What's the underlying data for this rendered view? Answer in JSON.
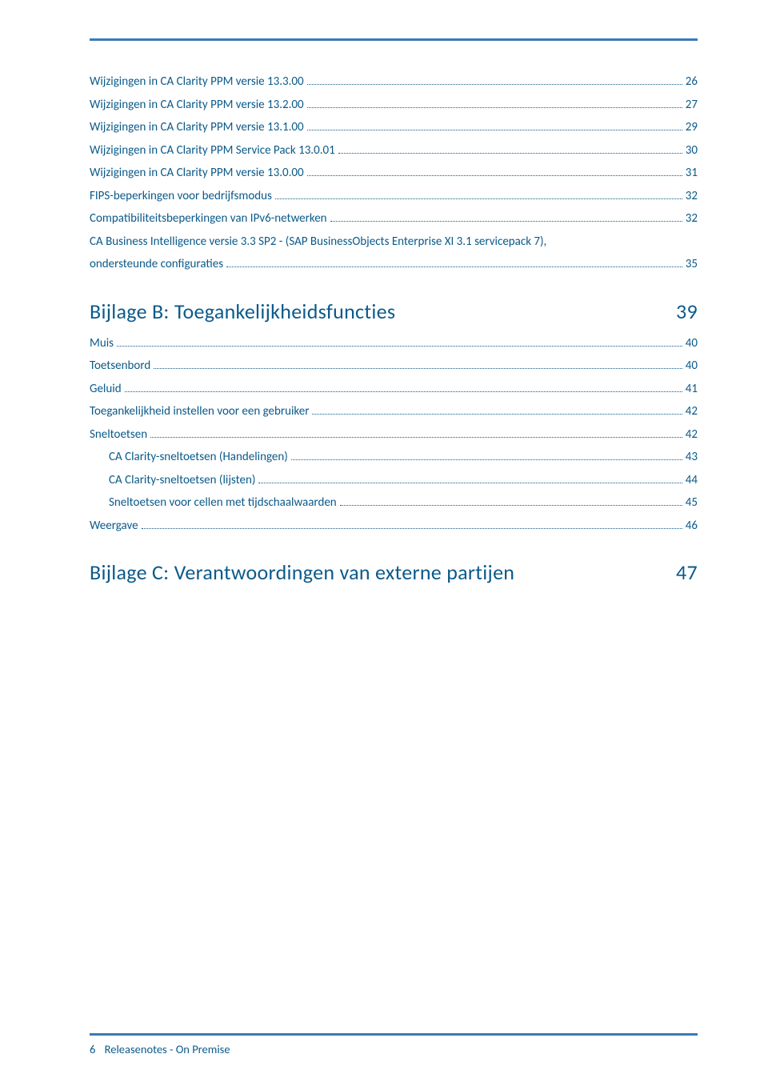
{
  "colors": {
    "rule": "#3a7ab8",
    "link": "#0a5a8a",
    "heading": "#0a5a8a",
    "background": "#ffffff"
  },
  "fontsizes": {
    "toc": 15,
    "heading": 26,
    "footer": 14.5
  },
  "toc1": {
    "items": [
      {
        "label": "Wijzigingen in CA Clarity PPM versie 13.3.00",
        "page": "26",
        "indent": 0
      },
      {
        "label": "Wijzigingen in CA Clarity PPM versie 13.2.00",
        "page": "27",
        "indent": 0
      },
      {
        "label": "Wijzigingen in CA Clarity PPM versie 13.1.00",
        "page": "29",
        "indent": 0
      },
      {
        "label": "Wijzigingen in CA Clarity PPM Service Pack 13.0.01",
        "page": "30",
        "indent": 0
      },
      {
        "label": "Wijzigingen in CA Clarity PPM versie 13.0.00",
        "page": "31",
        "indent": 0
      },
      {
        "label": "FIPS-beperkingen voor bedrijfsmodus",
        "page": "32",
        "indent": 0
      },
      {
        "label": "Compatibiliteitsbeperkingen van IPv6-netwerken",
        "page": "32",
        "indent": 0
      }
    ],
    "multiline": {
      "line1": "CA Business Intelligence versie 3.3 SP2 - (SAP BusinessObjects Enterprise XI 3.1 servicepack 7),",
      "label2": "ondersteunde configuraties",
      "page": "35",
      "indent": 0
    }
  },
  "sectionB": {
    "title": "Bijlage B: Toegankelijkheidsfuncties",
    "page": "39"
  },
  "toc2": {
    "items": [
      {
        "label": "Muis",
        "page": "40",
        "indent": 0
      },
      {
        "label": "Toetsenbord",
        "page": "40",
        "indent": 0
      },
      {
        "label": "Geluid",
        "page": "41",
        "indent": 0
      },
      {
        "label": "Toegankelijkheid instellen voor een gebruiker",
        "page": "42",
        "indent": 0
      },
      {
        "label": "Sneltoetsen",
        "page": "42",
        "indent": 0
      },
      {
        "label": "CA Clarity-sneltoetsen (Handelingen)",
        "page": "43",
        "indent": 1
      },
      {
        "label": "CA Clarity-sneltoetsen (lijsten)",
        "page": "44",
        "indent": 1
      },
      {
        "label": "Sneltoetsen voor cellen met tijdschaalwaarden",
        "page": "45",
        "indent": 1
      },
      {
        "label": "Weergave",
        "page": "46",
        "indent": 0
      }
    ]
  },
  "sectionC": {
    "title": "Bijlage C: Verantwoordingen van externe partijen",
    "page": "47"
  },
  "footer": {
    "pageNumber": "6",
    "title": "Releasenotes - On Premise"
  }
}
